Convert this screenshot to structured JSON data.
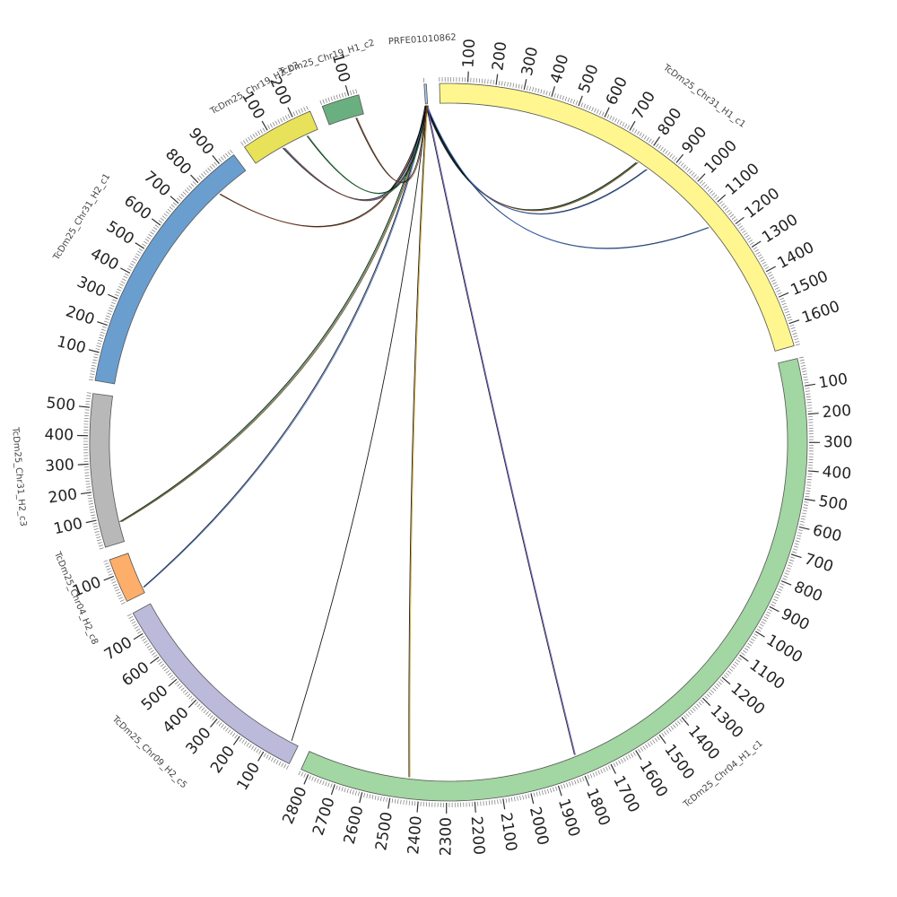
{
  "chart_data": {
    "type": "circos",
    "contigs": [
      {
        "name": "PRFE01010862",
        "length": 8,
        "color": "#a6c8e4",
        "label_ticks": []
      },
      {
        "name": "TcDm25_Chr31_H1_c1",
        "length": 1680,
        "color": "#fff68f",
        "label_ticks": [
          100,
          200,
          300,
          400,
          500,
          600,
          700,
          800,
          900,
          1000,
          1100,
          1200,
          1300,
          1400,
          1500,
          1600
        ]
      },
      {
        "name": "TcDm25_Chr04_H1_c1",
        "length": 2830,
        "color": "#a2d6a2",
        "label_ticks": [
          100,
          200,
          300,
          400,
          500,
          600,
          700,
          800,
          900,
          1000,
          1100,
          1200,
          1300,
          1400,
          1500,
          1600,
          1700,
          1800,
          1900,
          2000,
          2100,
          2200,
          2300,
          2400,
          2500,
          2600,
          2700,
          2800
        ]
      },
      {
        "name": "TcDm25_Chr09_H2_c5",
        "length": 780,
        "color": "#bcbadb",
        "label_ticks": [
          100,
          200,
          300,
          400,
          500,
          600,
          700
        ]
      },
      {
        "name": "TcDm25_Chr04_H2_c8",
        "length": 160,
        "color": "#fdae6b",
        "label_ticks": [
          100
        ]
      },
      {
        "name": "TcDm25_Chr31_H2_c3",
        "length": 550,
        "color": "#b8b8b8",
        "label_ticks": [
          100,
          200,
          300,
          400,
          500
        ]
      },
      {
        "name": "TcDm25_Chr31_H2_c1",
        "length": 960,
        "color": "#6a9ecf",
        "label_ticks": [
          100,
          200,
          300,
          400,
          500,
          600,
          700,
          800,
          900
        ]
      },
      {
        "name": "TcDm25_Chr19_H2_c3",
        "length": 265,
        "color": "#e8e25a",
        "label_ticks": [
          100,
          200
        ]
      },
      {
        "name": "TcDm25_Chr19_H1_c2",
        "length": 135,
        "color": "#6aaf80",
        "label_ticks": [
          100
        ]
      }
    ],
    "links": [
      {
        "source": "PRFE01010862",
        "source_pos": 3,
        "target": "TcDm25_Chr31_H1_c1",
        "target_pos": 785,
        "colors": [
          "#000000",
          "#1a7a3a",
          "#7a3a1a"
        ]
      },
      {
        "source": "PRFE01010862",
        "source_pos": 4,
        "target": "TcDm25_Chr31_H1_c1",
        "target_pos": 830,
        "colors": [
          "#000000",
          "#3a6abf"
        ]
      },
      {
        "source": "PRFE01010862",
        "source_pos": 4,
        "target": "TcDm25_Chr31_H1_c1",
        "target_pos": 1150,
        "colors": [
          "#000000",
          "#3a6abf"
        ]
      },
      {
        "source": "PRFE01010862",
        "source_pos": 5,
        "target": "TcDm25_Chr04_H1_c1",
        "target_pos": 1805,
        "colors": [
          "#000000",
          "#6a5acd"
        ]
      },
      {
        "source": "PRFE01010862",
        "source_pos": 5,
        "target": "TcDm25_Chr04_H1_c1",
        "target_pos": 2440,
        "colors": [
          "#000000",
          "#d4a017"
        ]
      },
      {
        "source": "PRFE01010862",
        "source_pos": 6,
        "target": "TcDm25_Chr09_H2_c5",
        "target_pos": 30,
        "colors": [
          "#000000"
        ]
      },
      {
        "source": "PRFE01010862",
        "source_pos": 6,
        "target": "TcDm25_Chr04_H2_c8",
        "target_pos": 20,
        "colors": [
          "#000000",
          "#3a6abf"
        ]
      },
      {
        "source": "PRFE01010862",
        "source_pos": 7,
        "target": "TcDm25_Chr31_H2_c3",
        "target_pos": 75,
        "colors": [
          "#000000",
          "#1a7a3a",
          "#7a3a1a"
        ]
      },
      {
        "source": "PRFE01010862",
        "source_pos": 7,
        "target": "TcDm25_Chr31_H2_c1",
        "target_pos": 830,
        "colors": [
          "#000000",
          "#7a3a1a"
        ]
      },
      {
        "source": "PRFE01010862",
        "source_pos": 2,
        "target": "TcDm25_Chr19_H2_c3",
        "target_pos": 120,
        "colors": [
          "#000000",
          "#3a6abf",
          "#7a3a1a"
        ]
      },
      {
        "source": "PRFE01010862",
        "source_pos": 3,
        "target": "TcDm25_Chr19_H2_c3",
        "target_pos": 220,
        "colors": [
          "#000000",
          "#1a7a3a"
        ]
      },
      {
        "source": "PRFE01010862",
        "source_pos": 2,
        "target": "TcDm25_Chr19_H1_c2",
        "target_pos": 105,
        "colors": [
          "#000000",
          "#7a3a1a"
        ]
      }
    ]
  }
}
